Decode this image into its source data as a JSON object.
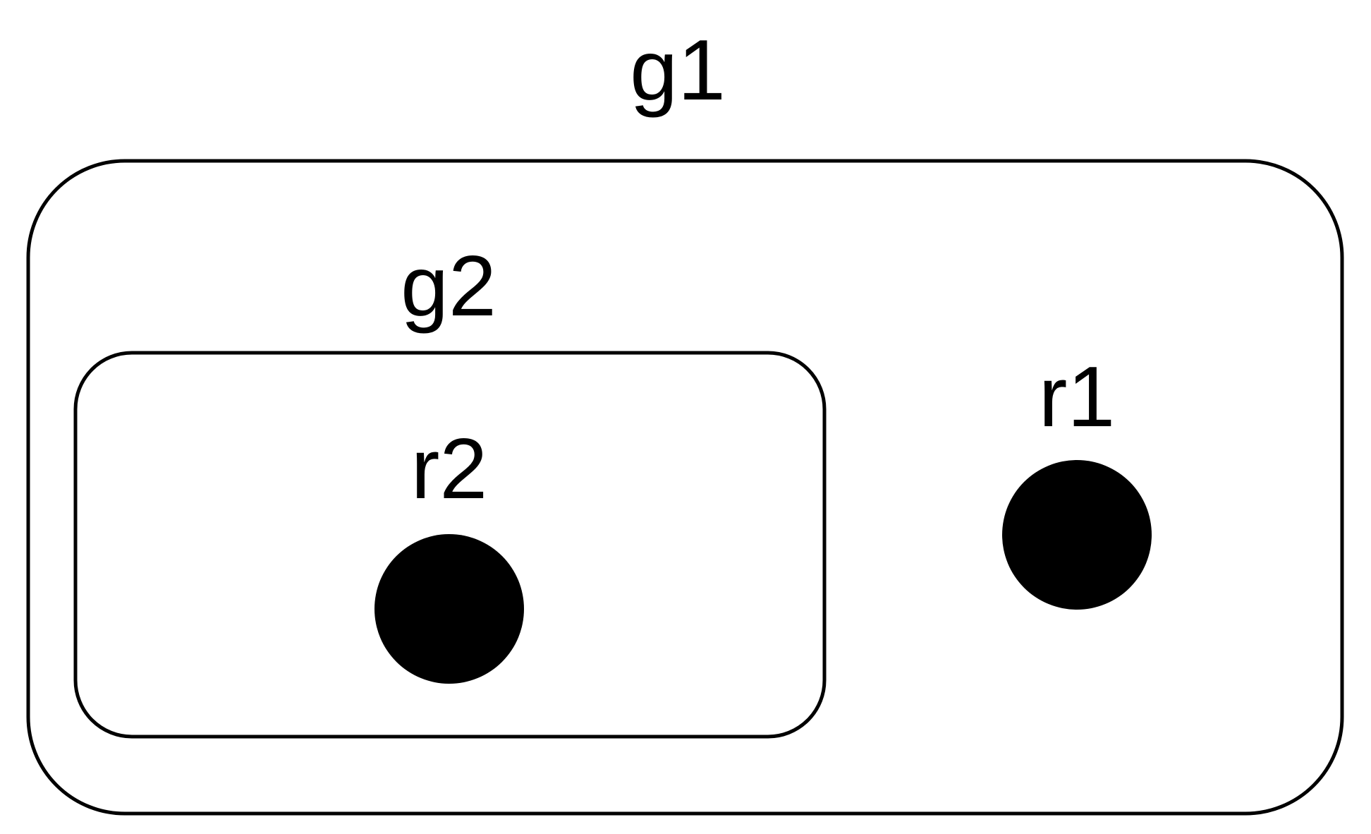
{
  "diagram": {
    "groups": [
      {
        "id": "g1",
        "label": "g1"
      },
      {
        "id": "g2",
        "label": "g2"
      }
    ],
    "nodes": [
      {
        "id": "r1",
        "label": "r1"
      },
      {
        "id": "r2",
        "label": "r2"
      }
    ],
    "colors": {
      "stroke": "#000000",
      "fill": "#000000",
      "background": "#ffffff"
    }
  }
}
